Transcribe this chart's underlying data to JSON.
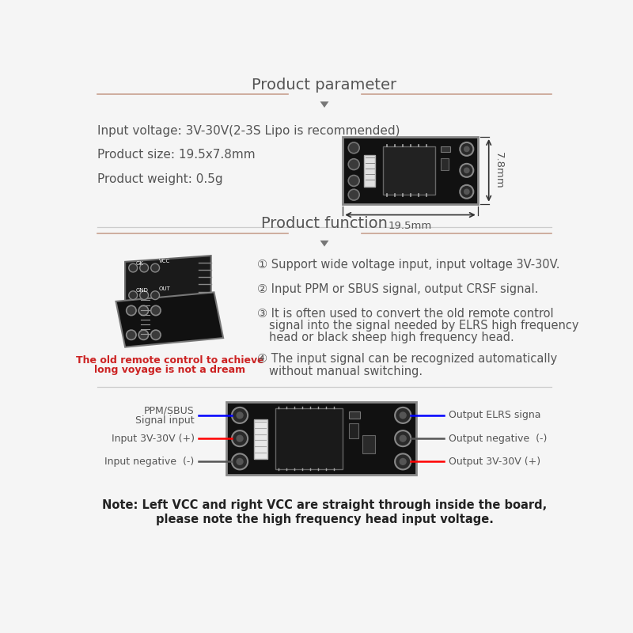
{
  "bg_color": "#f5f5f5",
  "section1_title": "Product parameter",
  "section2_title": "Product function",
  "param_line1": "Input voltage: 3V-30V(2-3S Lipo is recommended)",
  "param_line2": "Product size: 19.5x7.8mm",
  "param_line3": "Product weight: 0.5g",
  "dim_width": "19.5mm",
  "dim_height": "7.8mm",
  "func_item1": "① Support wide voltage input, input voltage 3V-30V.",
  "func_item2": "② Input PPM or SBUS signal, output CRSF signal.",
  "func_item3a": "③ It is often used to convert the old remote control",
  "func_item3b": "    signal into the signal needed by ELRS high frequency",
  "func_item3c": "    head or black sheep high frequency head.",
  "func_item4a": "④ The input signal can be recognized automatically",
  "func_item4b": "    without manual switching.",
  "red_caption1": "The old remote control to achieve",
  "red_caption2": "long voyage is not a dream",
  "note_line1": "Note: Left VCC and right VCC are straight through inside the board,",
  "note_line2": "please note the high frequency head input voltage.",
  "title_color": "#555555",
  "text_color": "#555555",
  "red_text_color": "#cc2222",
  "line_color": "#c8a090",
  "arrow_color": "#777777",
  "note_color": "#222222"
}
